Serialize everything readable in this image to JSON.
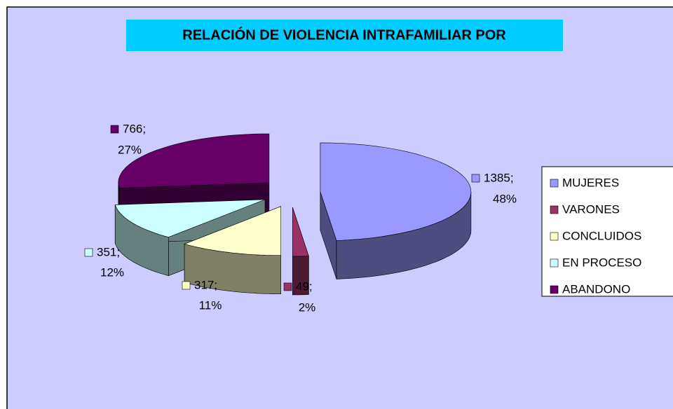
{
  "chart_data": {
    "type": "pie",
    "title": "RELACIÓN DE VIOLENCIA INTRAFAMILIAR POR",
    "categories": [
      "MUJERES",
      "VARONES",
      "CONCLUIDOS",
      "EN PROCESO",
      "ABANDONO"
    ],
    "values": [
      1385,
      49,
      317,
      351,
      766
    ],
    "value_labels": [
      "1385;",
      "49;",
      "317;",
      "351;",
      "766;"
    ],
    "percents": [
      48,
      2,
      11,
      12,
      27
    ],
    "percent_labels": [
      "48%",
      "2%",
      "11%",
      "12%",
      "27%"
    ],
    "colors": [
      "#9999ff",
      "#993366",
      "#ffffcc",
      "#ccffff",
      "#660066"
    ],
    "legend": "right"
  }
}
